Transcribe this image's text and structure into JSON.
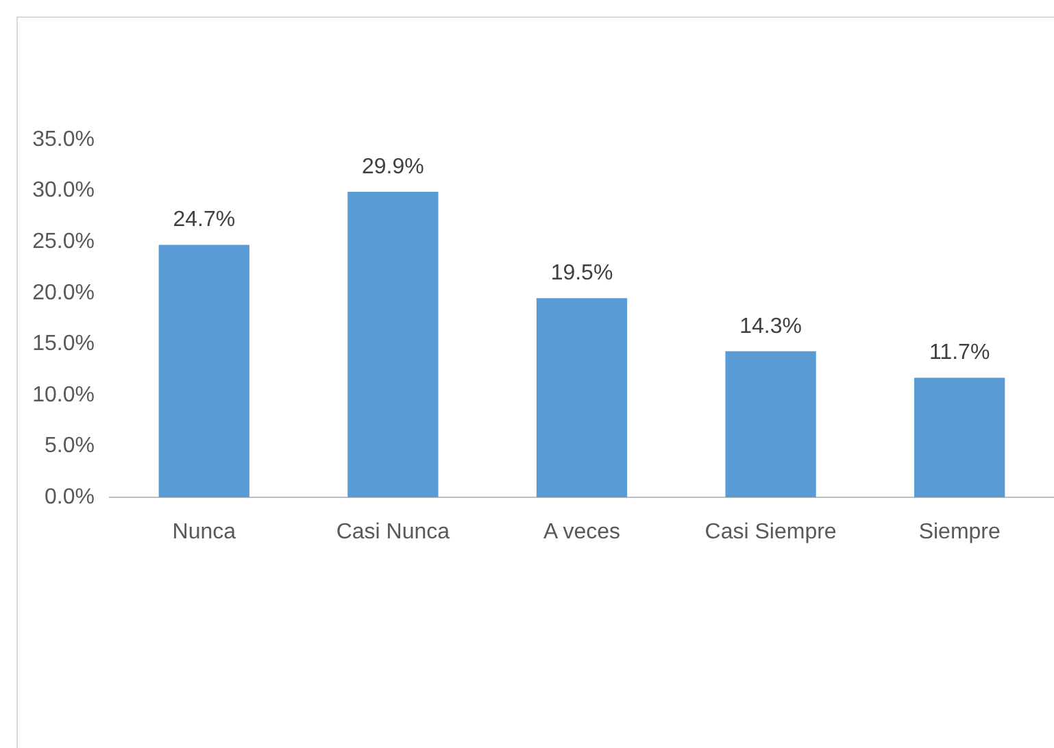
{
  "chart_data": {
    "type": "bar",
    "categories": [
      "Nunca",
      "Casi Nunca",
      "A veces",
      "Casi Siempre",
      "Siempre"
    ],
    "values": [
      24.7,
      29.9,
      19.5,
      14.3,
      11.7
    ],
    "color": "#5b9bd5",
    "value_labels": [
      "24.7%",
      "29.9%",
      "19.5%",
      "14.3%",
      "11.7%"
    ],
    "ylim": [
      0,
      35
    ],
    "yticks": [
      {
        "value": 0,
        "label": "0.0%"
      },
      {
        "value": 5,
        "label": "5.0%"
      },
      {
        "value": 10,
        "label": "10.0%"
      },
      {
        "value": 15,
        "label": "15.0%"
      },
      {
        "value": 20,
        "label": "20.0%"
      },
      {
        "value": 25,
        "label": "25.0%"
      },
      {
        "value": 30,
        "label": "30.0%"
      },
      {
        "value": 35,
        "label": "35.0%"
      }
    ],
    "grid": false,
    "legend": false
  }
}
